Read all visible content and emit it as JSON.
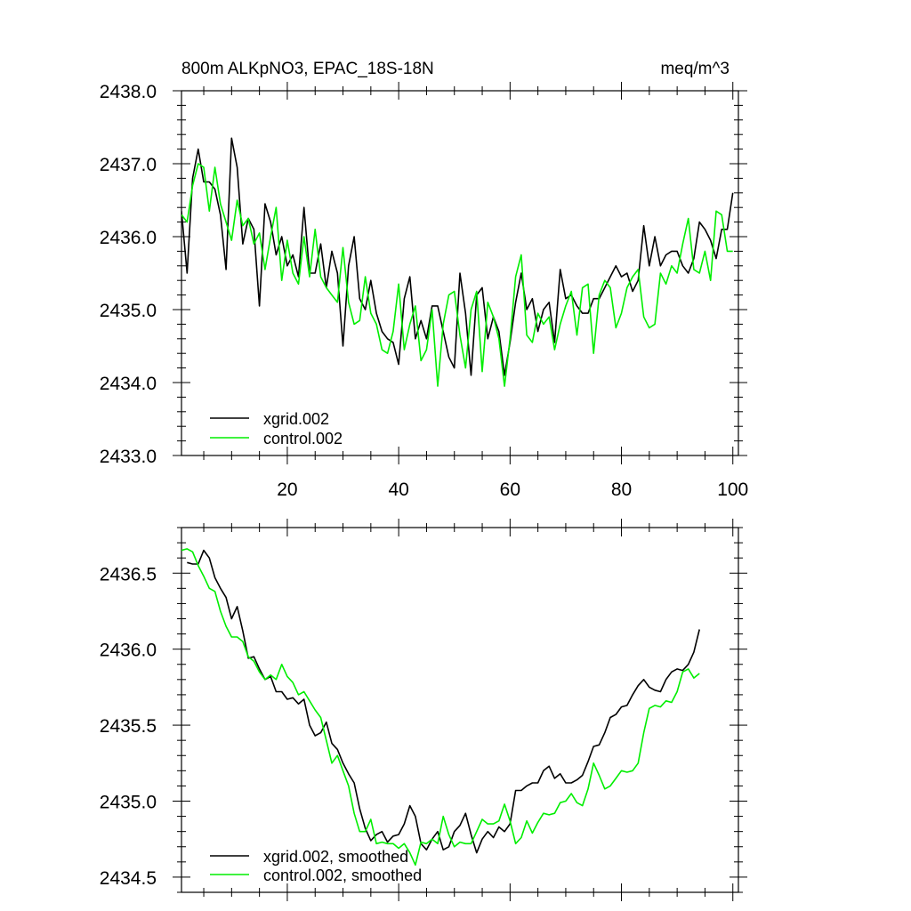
{
  "chart_data": [
    {
      "type": "line",
      "title_left": "800m ALKpNO3, EPAC_18S-18N",
      "title_right": "meq/m^3",
      "xlim": [
        1,
        101
      ],
      "ylim": [
        2433.0,
        2438.0
      ],
      "x_ticks": [
        20,
        40,
        60,
        80,
        100
      ],
      "y_ticks": [
        "2433.0",
        "2434.0",
        "2435.0",
        "2436.0",
        "2437.0",
        "2438.0"
      ],
      "y_tick_values": [
        2433.0,
        2434.0,
        2435.0,
        2436.0,
        2437.0,
        2438.0
      ],
      "legend_position": "bottom-left",
      "series": [
        {
          "name": "xgrid.002",
          "color": "#000000",
          "x_start": 1,
          "values": [
            2436.35,
            2435.5,
            2436.8,
            2437.2,
            2436.75,
            2436.75,
            2436.65,
            2436.3,
            2435.55,
            2437.35,
            2436.95,
            2435.9,
            2436.25,
            2436.1,
            2435.05,
            2436.45,
            2436.2,
            2435.75,
            2436.0,
            2435.6,
            2435.75,
            2435.45,
            2436.4,
            2435.5,
            2435.5,
            2435.9,
            2435.3,
            2435.8,
            2435.5,
            2434.5,
            2435.6,
            2436.0,
            2435.15,
            2435.0,
            2435.4,
            2434.95,
            2434.7,
            2434.6,
            2434.55,
            2434.25,
            2435.15,
            2435.45,
            2434.6,
            2434.85,
            2434.6,
            2435.05,
            2435.05,
            2434.7,
            2434.35,
            2434.2,
            2435.5,
            2434.95,
            2434.1,
            2435.2,
            2435.3,
            2434.6,
            2434.9,
            2434.7,
            2434.1,
            2434.55,
            2435.1,
            2435.5,
            2435.0,
            2435.15,
            2434.7,
            2435.0,
            2435.1,
            2434.55,
            2435.55,
            2435.15,
            2435.2,
            2435.05,
            2434.95,
            2434.95,
            2435.15,
            2435.15,
            2435.3,
            2435.45,
            2435.6,
            2435.45,
            2435.5,
            2435.25,
            2435.4,
            2436.15,
            2435.6,
            2436.0,
            2435.6,
            2435.75,
            2435.8,
            2435.8,
            2435.6,
            2435.5,
            2435.7,
            2436.2,
            2436.1,
            2435.95,
            2435.7,
            2436.1,
            2436.1,
            2436.6
          ]
        },
        {
          "name": "control.002",
          "color": "#00ee00",
          "x_start": 1,
          "values": [
            2436.3,
            2436.2,
            2436.7,
            2437.0,
            2436.95,
            2436.35,
            2436.95,
            2436.45,
            2436.2,
            2435.95,
            2436.5,
            2436.15,
            2436.25,
            2435.9,
            2436.05,
            2435.55,
            2436.0,
            2436.4,
            2435.4,
            2435.95,
            2435.5,
            2435.35,
            2436.0,
            2435.45,
            2436.1,
            2435.45,
            2435.3,
            2435.2,
            2435.1,
            2435.85,
            2435.1,
            2434.8,
            2434.85,
            2435.45,
            2434.95,
            2434.8,
            2434.45,
            2434.4,
            2434.7,
            2435.35,
            2434.45,
            2434.8,
            2435.05,
            2434.3,
            2434.45,
            2435.0,
            2433.95,
            2434.8,
            2435.2,
            2435.25,
            2434.65,
            2434.2,
            2435.0,
            2435.25,
            2434.15,
            2435.1,
            2434.9,
            2434.6,
            2433.95,
            2434.6,
            2435.45,
            2435.75,
            2434.65,
            2434.55,
            2434.95,
            2434.8,
            2434.9,
            2434.45,
            2434.8,
            2435.05,
            2435.25,
            2434.65,
            2435.3,
            2435.35,
            2434.4,
            2435.2,
            2435.4,
            2435.3,
            2434.75,
            2434.95,
            2435.3,
            2435.45,
            2435.55,
            2434.9,
            2434.75,
            2434.8,
            2435.5,
            2435.35,
            2435.6,
            2435.5,
            2435.9,
            2436.25,
            2435.55,
            2435.5,
            2435.8,
            2435.4,
            2436.35,
            2436.3,
            2435.8,
            2435.8
          ]
        }
      ]
    },
    {
      "type": "line",
      "xlim": [
        1,
        101
      ],
      "ylim": [
        2434.4,
        2436.8
      ],
      "x_ticks": [
        20,
        40,
        60,
        80,
        100
      ],
      "y_ticks": [
        "2434.5",
        "2435.0",
        "2435.5",
        "2436.0",
        "2436.5"
      ],
      "y_tick_values": [
        2434.5,
        2435.0,
        2435.5,
        2436.0,
        2436.5
      ],
      "legend_position": "bottom-left",
      "series": [
        {
          "name": "xgrid.002, smoothed",
          "color": "#000000",
          "x_start": 2,
          "values": [
            2436.57,
            2436.56,
            2436.56,
            2436.65,
            2436.6,
            2436.47,
            2436.4,
            2436.34,
            2436.2,
            2436.28,
            2436.12,
            2435.94,
            2435.95,
            2435.87,
            2435.8,
            2435.82,
            2435.72,
            2435.72,
            2435.67,
            2435.68,
            2435.64,
            2435.67,
            2435.5,
            2435.43,
            2435.45,
            2435.52,
            2435.38,
            2435.34,
            2435.25,
            2435.18,
            2435.12,
            2434.95,
            2434.82,
            2434.74,
            2434.78,
            2434.8,
            2434.73,
            2434.77,
            2434.78,
            2434.85,
            2434.97,
            2434.9,
            2434.72,
            2434.68,
            2434.75,
            2434.8,
            2434.68,
            2434.7,
            2434.8,
            2434.84,
            2434.92,
            2434.78,
            2434.66,
            2434.75,
            2434.8,
            2434.76,
            2434.83,
            2434.8,
            2434.85,
            2435.07,
            2435.07,
            2435.1,
            2435.12,
            2435.12,
            2435.2,
            2435.23,
            2435.15,
            2435.18,
            2435.12,
            2435.12,
            2435.14,
            2435.17,
            2435.26,
            2435.36,
            2435.37,
            2435.45,
            2435.55,
            2435.57,
            2435.62,
            2435.63,
            2435.7,
            2435.76,
            2435.8,
            2435.75,
            2435.73,
            2435.72,
            2435.8,
            2435.85,
            2435.87,
            2435.86,
            2435.9,
            2435.98,
            2436.13
          ]
        },
        {
          "name": "control.002, smoothed",
          "color": "#00ee00",
          "x_start": 1,
          "values": [
            2436.65,
            2436.66,
            2436.64,
            2436.55,
            2436.48,
            2436.4,
            2436.38,
            2436.25,
            2436.15,
            2436.08,
            2436.08,
            2436.05,
            2435.95,
            2435.92,
            2435.85,
            2435.8,
            2435.83,
            2435.8,
            2435.9,
            2435.82,
            2435.78,
            2435.7,
            2435.72,
            2435.66,
            2435.6,
            2435.55,
            2435.4,
            2435.25,
            2435.3,
            2435.2,
            2435.1,
            2434.92,
            2434.8,
            2434.8,
            2434.88,
            2434.72,
            2434.73,
            2434.72,
            2434.72,
            2434.69,
            2434.72,
            2434.66,
            2434.58,
            2434.73,
            2434.72,
            2434.75,
            2434.72,
            2434.9,
            2434.78,
            2434.7,
            2434.73,
            2434.72,
            2434.72,
            2434.8,
            2434.88,
            2434.85,
            2434.85,
            2434.87,
            2434.98,
            2434.87,
            2434.72,
            2434.76,
            2434.87,
            2434.79,
            2434.86,
            2434.92,
            2434.91,
            2434.92,
            2434.99,
            2435.0,
            2435.05,
            2434.99,
            2434.97,
            2435.08,
            2435.25,
            2435.17,
            2435.08,
            2435.1,
            2435.15,
            2435.2,
            2435.19,
            2435.2,
            2435.25,
            2435.45,
            2435.61,
            2435.63,
            2435.62,
            2435.66,
            2435.65,
            2435.72,
            2435.85,
            2435.87,
            2435.81,
            2435.84
          ]
        }
      ]
    }
  ]
}
